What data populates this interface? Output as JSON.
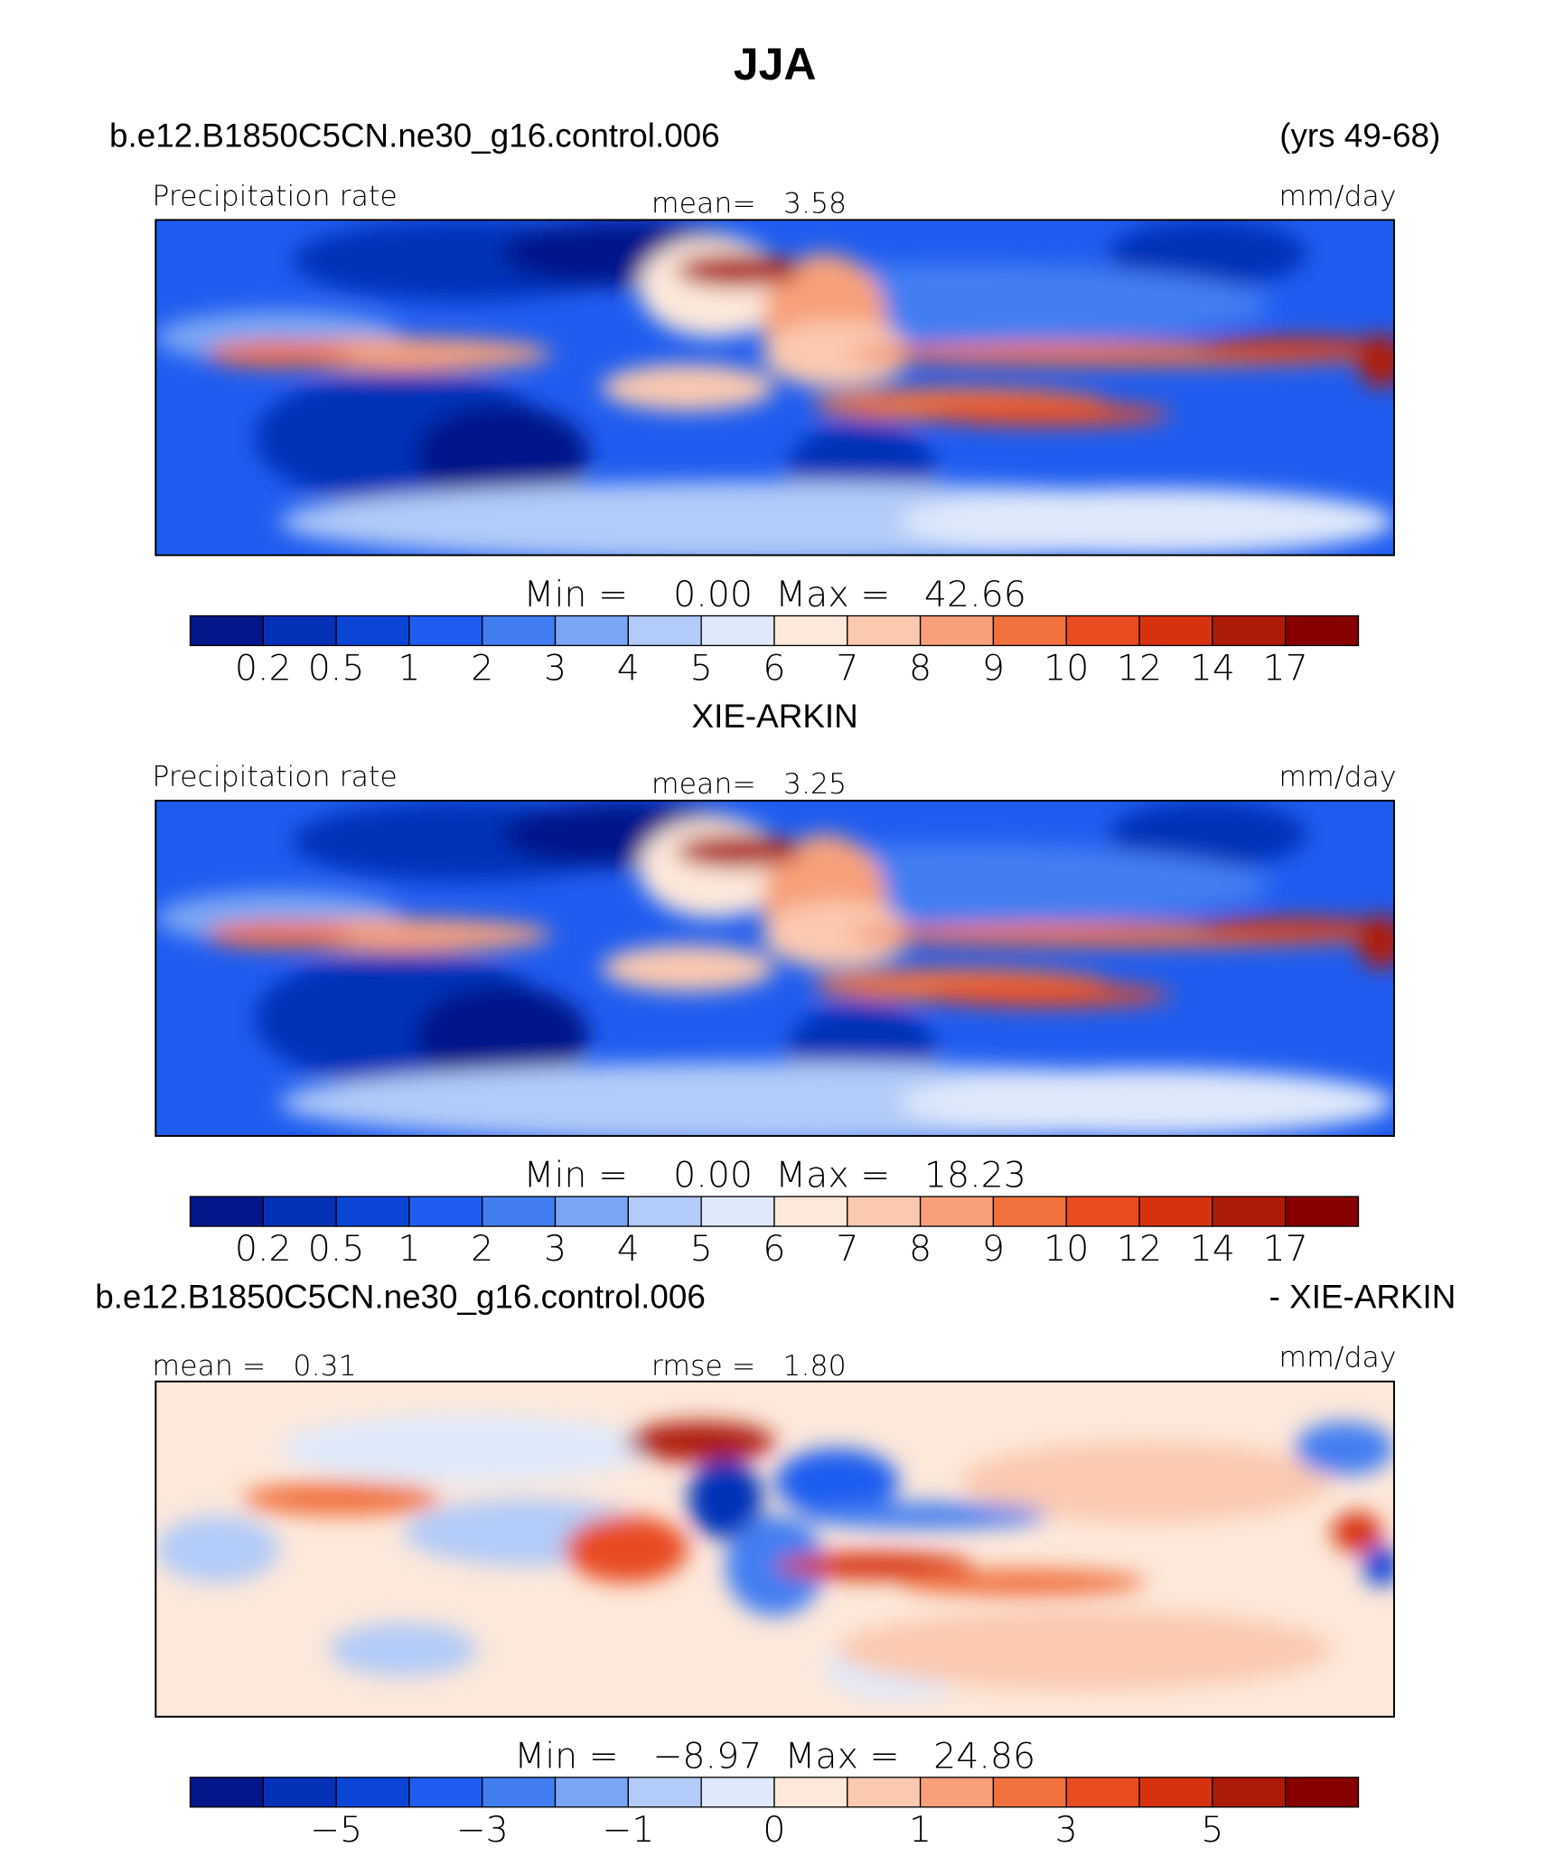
{
  "title": "JJA",
  "panels": [
    {
      "header_left": "b.e12.B1850C5CN.ne30_g16.control.006",
      "header_right": "(yrs 49-68)",
      "label_left": "Precipitation rate",
      "label_center": "mean=   3.58",
      "label_right": "mm/day",
      "minmax": "Min =    0.00  Max =   42.66",
      "field": "precip",
      "colorbar": {
        "labels": [
          "0.2",
          "0.5",
          "1",
          "2",
          "3",
          "4",
          "5",
          "6",
          "7",
          "8",
          "9",
          "10",
          "12",
          "14",
          "17"
        ],
        "colors": [
          "#03178a",
          "#0530b8",
          "#0b45d8",
          "#1f5df0",
          "#427ef2",
          "#7ba6f5",
          "#b2cbf8",
          "#dfe9fb",
          "#fde8da",
          "#fbc9b0",
          "#f7a07a",
          "#f1723f",
          "#e84c20",
          "#d63210",
          "#ae1a08",
          "#870000"
        ]
      }
    },
    {
      "header_center": "XIE-ARKIN",
      "label_left": "Precipitation rate",
      "label_center": "mean=   3.25",
      "label_right": "mm/day",
      "minmax": "Min =    0.00  Max =   18.23",
      "field": "precip",
      "colorbar": {
        "labels": [
          "0.2",
          "0.5",
          "1",
          "2",
          "3",
          "4",
          "5",
          "6",
          "7",
          "8",
          "9",
          "10",
          "12",
          "14",
          "17"
        ],
        "colors": [
          "#03178a",
          "#0530b8",
          "#0b45d8",
          "#1f5df0",
          "#427ef2",
          "#7ba6f5",
          "#b2cbf8",
          "#dfe9fb",
          "#fde8da",
          "#fbc9b0",
          "#f7a07a",
          "#f1723f",
          "#e84c20",
          "#d63210",
          "#ae1a08",
          "#870000"
        ]
      }
    },
    {
      "header_left": "b.e12.B1850C5CN.ne30_g16.control.006",
      "header_right": "- XIE-ARKIN",
      "label_left": "mean =   0.31",
      "label_center": "rmse =   1.80",
      "label_right": "mm/day",
      "minmax": "Min =   −8.97  Max =   24.86",
      "field": "diff",
      "colorbar": {
        "labels": [
          null,
          "−5",
          null,
          "−3",
          null,
          "−1",
          null,
          "0",
          null,
          "1",
          null,
          "3",
          null,
          "5",
          null
        ],
        "colors": [
          "#03178a",
          "#0530b8",
          "#0b45d8",
          "#1f5df0",
          "#427ef2",
          "#7ba6f5",
          "#b2cbf8",
          "#dfe9fb",
          "#fde8da",
          "#fbc9b0",
          "#f7a07a",
          "#f1723f",
          "#e84c20",
          "#d63210",
          "#ae1a08",
          "#870000"
        ]
      }
    }
  ]
}
